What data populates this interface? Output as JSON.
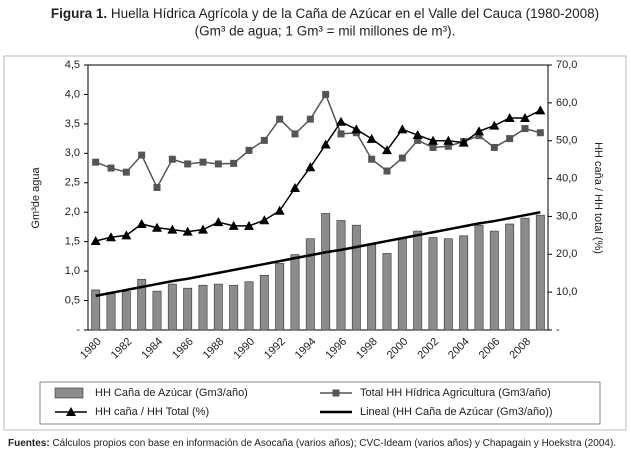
{
  "chart_data": {
    "type": "bar",
    "title": "Huella Hídrica Agrícola y de la Caña de Azúcar en el Valle del Cauca (1980-2008)",
    "title_prefix": "Figura 1.",
    "subtitle": "(Gm³ de agua; 1 Gm³ = mil millones de m³).",
    "y_label": "Gm³de agua",
    "y2_label": "HH caña / HH total (%)",
    "source_prefix": "Fuentes:",
    "source": "Cálculos propios con base en información de Asocaña (varios años); CVC-Ideam (varios años) y Chapagain y Hoekstra (2004).",
    "categories": [
      "1980",
      null,
      "1982",
      null,
      "1984",
      null,
      "1986",
      null,
      "1988",
      null,
      "1990",
      null,
      "1992",
      null,
      "1994",
      null,
      "1996",
      null,
      "1998",
      null,
      "2000",
      null,
      "2002",
      null,
      "2004",
      null,
      "2006",
      null,
      "2008",
      null
    ],
    "series": [
      {
        "name": "HH Caña de Azúcar (Gm3/año)",
        "kind": "bar",
        "color": "#8c8c8c",
        "values": [
          0.68,
          0.62,
          0.65,
          0.86,
          0.66,
          0.78,
          0.71,
          0.76,
          0.78,
          0.76,
          0.82,
          0.93,
          1.13,
          1.28,
          1.55,
          1.98,
          1.86,
          1.78,
          1.45,
          1.3,
          1.55,
          1.68,
          1.57,
          1.55,
          1.6,
          1.78,
          1.68,
          1.8,
          1.9,
          1.95
        ]
      },
      {
        "name": "Total HH Hídrica Agricultura (Gm3/año)",
        "kind": "line",
        "marker": "square",
        "color": "#555555",
        "values": [
          2.85,
          2.75,
          2.68,
          2.97,
          2.42,
          2.9,
          2.82,
          2.85,
          2.82,
          2.83,
          3.05,
          3.22,
          3.58,
          3.33,
          3.58,
          4.0,
          3.33,
          3.35,
          2.9,
          2.7,
          2.92,
          3.22,
          3.1,
          3.12,
          3.2,
          3.3,
          3.1,
          3.25,
          3.42,
          3.35
        ]
      },
      {
        "name": "HH caña / HH Total (%)",
        "kind": "line",
        "marker": "triangle",
        "color": "#000000",
        "axis": "y2",
        "values": [
          23.5,
          24.5,
          25,
          28,
          27,
          26.5,
          26,
          26.5,
          28.5,
          27.5,
          27.5,
          29,
          31.5,
          37.5,
          43,
          49,
          55,
          53,
          50.5,
          47.5,
          53,
          51.5,
          50,
          50,
          49.5,
          52.5,
          54,
          56,
          56,
          58
        ]
      },
      {
        "name": "Lineal (HH Caña de Azúcar (Gm3/año))",
        "kind": "line",
        "marker": "none",
        "color": "#000000",
        "values": [
          0.58,
          0.63,
          0.68,
          0.73,
          0.78,
          0.83,
          0.87,
          0.92,
          0.97,
          1.02,
          1.07,
          1.12,
          1.17,
          1.22,
          1.27,
          1.32,
          1.36,
          1.41,
          1.46,
          1.51,
          1.56,
          1.61,
          1.66,
          1.71,
          1.76,
          1.81,
          1.85,
          1.9,
          1.95,
          2.0
        ]
      }
    ],
    "ylim": [
      0,
      4.5
    ],
    "yticks": [
      {
        "value": 0,
        "label": "-"
      },
      {
        "value": 0.5,
        "label": "0,5"
      },
      {
        "value": 1,
        "label": "1,0"
      },
      {
        "value": 1.5,
        "label": "1,5"
      },
      {
        "value": 2,
        "label": "2,0"
      },
      {
        "value": 2.5,
        "label": "2,5"
      },
      {
        "value": 3,
        "label": "3,0"
      },
      {
        "value": 3.5,
        "label": "3,5"
      },
      {
        "value": 4,
        "label": "4,0"
      },
      {
        "value": 4.5,
        "label": "4,5"
      }
    ],
    "y2lim": [
      0,
      70
    ],
    "y2ticks": [
      {
        "value": 0,
        "label": "-"
      },
      {
        "value": 10,
        "label": "10,0"
      },
      {
        "value": 20,
        "label": "20,0"
      },
      {
        "value": 30,
        "label": "30,0"
      },
      {
        "value": 40,
        "label": "40,0"
      },
      {
        "value": 50,
        "label": "50,0"
      },
      {
        "value": 60,
        "label": "60,0"
      },
      {
        "value": 70,
        "label": "70,0"
      }
    ],
    "grid": false
  }
}
